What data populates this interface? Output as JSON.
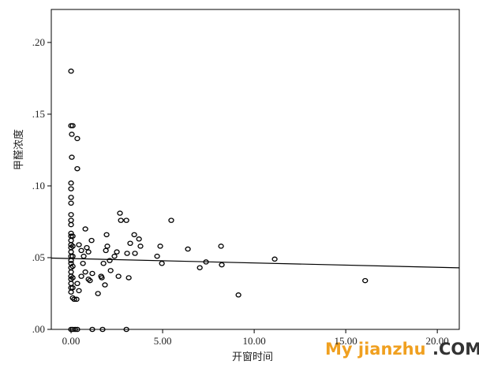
{
  "chart_data": {
    "type": "scatter",
    "xlabel": "开窗时间",
    "ylabel": "甲醛浓度",
    "xlim": [
      -1.08,
      21.2
    ],
    "ylim": [
      0,
      0.223
    ],
    "xticks": [
      {
        "value": 0,
        "label": "0.00"
      },
      {
        "value": 5,
        "label": "5.00"
      },
      {
        "value": 10,
        "label": "10.00"
      },
      {
        "value": 15,
        "label": "15.00"
      },
      {
        "value": 20,
        "label": "20.00"
      }
    ],
    "yticks": [
      {
        "value": 0,
        "label": ".00"
      },
      {
        "value": 0.05,
        "label": ".05"
      },
      {
        "value": 0.1,
        "label": ".10"
      },
      {
        "value": 0.15,
        "label": ".15"
      },
      {
        "value": 0.2,
        "label": ".20"
      }
    ],
    "x": [
      0,
      0,
      0.09,
      0.04,
      0.34,
      0.04,
      0.34,
      0,
      0,
      0,
      0,
      0,
      0,
      0,
      0,
      0,
      0,
      0,
      0,
      0,
      0,
      0,
      0,
      0,
      0,
      0,
      0,
      0,
      0,
      0,
      0.09,
      0.09,
      0.09,
      0.09,
      0.09,
      0.09,
      0.09,
      0.17,
      0,
      0.09,
      0.22,
      0.34,
      1.16,
      1.72,
      3.02,
      0.43,
      0.56,
      0.69,
      0.78,
      0.86,
      0.95,
      0.65,
      0.78,
      0.56,
      0.95,
      1.03,
      0.34,
      0.43,
      0.3,
      1.12,
      1.16,
      1.47,
      1.64,
      1.68,
      1.77,
      1.85,
      1.9,
      1.94,
      1.98,
      2.11,
      2.16,
      2.37,
      2.5,
      2.59,
      2.67,
      2.72,
      3.02,
      3.06,
      3.15,
      3.23,
      3.45,
      3.49,
      3.71,
      3.79,
      4.7,
      4.87,
      4.96,
      5.47,
      6.38,
      7.03,
      7.37,
      8.19,
      8.23,
      9.14,
      11.12,
      16.06
    ],
    "series": [
      {
        "color": "#000000",
        "values": [
          0.18,
          0.142,
          0.142,
          0.136,
          0.133,
          0.12,
          0.112,
          0.102,
          0.098,
          0.092,
          0.088,
          0.08,
          0.076,
          0.073,
          0.067,
          0.065,
          0.062,
          0.059,
          0.057,
          0.054,
          0.051,
          0.048,
          0.046,
          0.043,
          0.04,
          0.037,
          0.035,
          0.032,
          0.029,
          0.026,
          0.065,
          0.058,
          0.051,
          0.044,
          0.036,
          0.029,
          0.022,
          0.021,
          0,
          0,
          0,
          0,
          0,
          0,
          0,
          0.059,
          0.055,
          0.051,
          0.07,
          0.057,
          0.054,
          0.046,
          0.04,
          0.037,
          0.035,
          0.034,
          0.032,
          0.027,
          0.021,
          0.062,
          0.039,
          0.025,
          0.037,
          0.036,
          0.046,
          0.031,
          0.055,
          0.066,
          0.058,
          0.048,
          0.041,
          0.051,
          0.054,
          0.037,
          0.081,
          0.076,
          0.076,
          0.053,
          0.036,
          0.06,
          0.066,
          0.053,
          0.063,
          0.058,
          0.051,
          0.058,
          0.046,
          0.076,
          0.056,
          0.043,
          0.047,
          0.058,
          0.045,
          0.024,
          0.049,
          0.034
        ]
      }
    ],
    "fit_line": {
      "x": [
        -1.08,
        21.2
      ],
      "values": [
        0.0497,
        0.0429
      ],
      "color": "#000000"
    }
  },
  "watermark": {
    "brand": "My jianzhu",
    "suffix": ".COM"
  }
}
